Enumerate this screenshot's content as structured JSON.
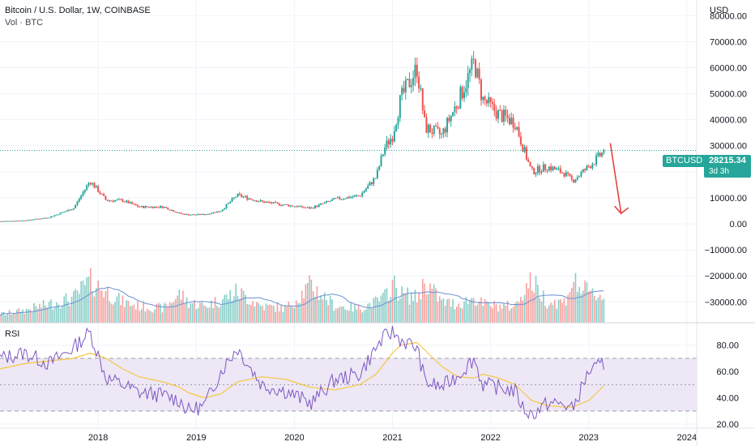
{
  "header": {
    "title": "Bitcoin / U.S. Dollar, 1W, COINBASE",
    "volume_label": "Vol · BTC",
    "rsi_label": "RSI"
  },
  "price_tag": {
    "symbol": "BTCUSD",
    "price": "28215.34",
    "countdown": "3d 3h"
  },
  "colors": {
    "up": "#26a69a",
    "down": "#ef5350",
    "volume_ma": "#6b8fd6",
    "rsi_line": "#7e57c2",
    "rsi_ma": "#f5c842",
    "rsi_band": "#ede7f6",
    "arrow": "#e53935",
    "grid": "#f0f3fa",
    "axis_text": "#131722"
  },
  "chart_data": [
    {
      "type": "line",
      "subtype": "candlestick",
      "title": "Bitcoin / U.S. Dollar, 1W, COINBASE",
      "y_axis_unit": "USD",
      "x_ticks": [
        "2018",
        "2019",
        "2020",
        "2021",
        "2022",
        "2023",
        "2024"
      ],
      "y_ticks": [
        "80000.00",
        "70000.00",
        "60000.00",
        "50000.00",
        "40000.00",
        "30000.00",
        "20000.00",
        "10000.00",
        "0.00",
        "−10000.00",
        "−20000.00",
        "−30000.00"
      ],
      "ylim": [
        -38000,
        86000
      ],
      "x": [
        "2017-01",
        "2017-04",
        "2017-07",
        "2017-10",
        "2017-12",
        "2018-02",
        "2018-04",
        "2018-06",
        "2018-09",
        "2018-11",
        "2018-12",
        "2019-02",
        "2019-04",
        "2019-06",
        "2019-09",
        "2019-12",
        "2020-03",
        "2020-06",
        "2020-09",
        "2020-11",
        "2020-12",
        "2021-01",
        "2021-02",
        "2021-04",
        "2021-05",
        "2021-07",
        "2021-09",
        "2021-11",
        "2021-12",
        "2022-02",
        "2022-04",
        "2022-05",
        "2022-06",
        "2022-08",
        "2022-10",
        "2022-11",
        "2023-01",
        "2023-03"
      ],
      "close": [
        1000,
        1300,
        2500,
        6000,
        16500,
        9000,
        9000,
        6500,
        6500,
        4000,
        3500,
        3600,
        5000,
        11000,
        8500,
        7200,
        6000,
        9500,
        10800,
        18000,
        29000,
        34000,
        48000,
        60000,
        37000,
        34000,
        47000,
        62000,
        48000,
        42000,
        39000,
        29000,
        20000,
        22000,
        19500,
        16500,
        22000,
        28215
      ],
      "series": [
        {
          "name": "Vol · BTC",
          "kind": "volume",
          "relative_levels": [
            0.2,
            0.3,
            0.45,
            0.6,
            1.0,
            0.75,
            0.5,
            0.4,
            0.35,
            0.7,
            0.5,
            0.4,
            0.55,
            0.75,
            0.4,
            0.35,
            0.9,
            0.4,
            0.35,
            0.5,
            0.6,
            0.95,
            0.7,
            0.6,
            1.0,
            0.5,
            0.45,
            0.6,
            0.45,
            0.4,
            0.4,
            0.8,
            1.0,
            0.5,
            0.5,
            1.0,
            0.7,
            0.65
          ]
        }
      ]
    },
    {
      "type": "line",
      "title": "RSI",
      "y_ticks": [
        "80.00",
        "60.00",
        "40.00",
        "20.00"
      ],
      "ylim": [
        17,
        97
      ],
      "bands": [
        30,
        50,
        70
      ],
      "x": [
        "2017-01",
        "2017-04",
        "2017-07",
        "2017-10",
        "2017-12",
        "2018-02",
        "2018-04",
        "2018-06",
        "2018-09",
        "2018-11",
        "2018-12",
        "2019-02",
        "2019-04",
        "2019-06",
        "2019-09",
        "2019-12",
        "2020-03",
        "2020-06",
        "2020-09",
        "2020-11",
        "2020-12",
        "2021-01",
        "2021-02",
        "2021-04",
        "2021-05",
        "2021-07",
        "2021-09",
        "2021-11",
        "2021-12",
        "2022-02",
        "2022-04",
        "2022-05",
        "2022-06",
        "2022-08",
        "2022-10",
        "2022-11",
        "2023-01",
        "2023-03"
      ],
      "rsi": [
        70,
        74,
        66,
        78,
        90,
        55,
        50,
        44,
        42,
        38,
        30,
        34,
        60,
        78,
        50,
        45,
        36,
        54,
        58,
        78,
        86,
        90,
        84,
        78,
        52,
        48,
        57,
        70,
        50,
        48,
        45,
        32,
        27,
        36,
        35,
        31,
        60,
        66
      ],
      "rsi_ma": [
        62,
        66,
        68,
        70,
        74,
        70,
        62,
        56,
        52,
        48,
        44,
        40,
        43,
        52,
        56,
        54,
        48,
        46,
        50,
        58,
        66,
        74,
        80,
        82,
        76,
        64,
        56,
        55,
        58,
        55,
        50,
        44,
        38,
        34,
        33,
        33,
        38,
        50
      ]
    }
  ]
}
